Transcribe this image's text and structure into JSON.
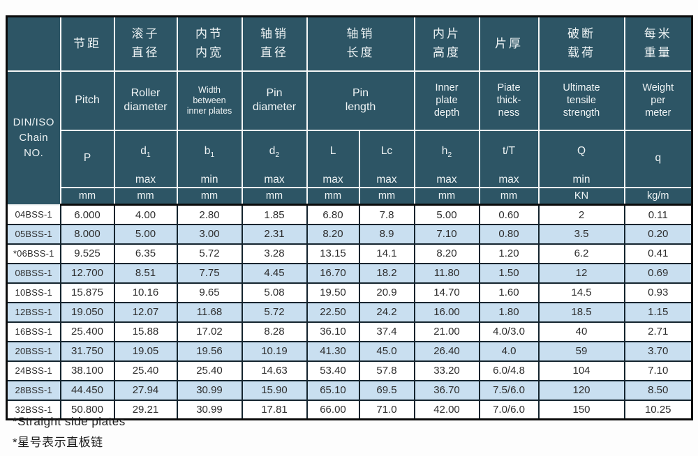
{
  "table": {
    "corner_label": "",
    "row_header": {
      "en": "DIN/ISO\nChain\nNO."
    },
    "columns": [
      {
        "cn": "节距",
        "en": "Pitch",
        "sym": {
          "base": "P",
          "sub": "",
          "qual": ""
        },
        "unit": "mm"
      },
      {
        "cn": "滚子\n直径",
        "en": "Roller\ndiameter",
        "sym": {
          "base": "d",
          "sub": "1",
          "qual": "max"
        },
        "unit": "mm"
      },
      {
        "cn": "内节\n内宽",
        "en": "Width\nbetween\ninner plates",
        "sym": {
          "base": "b",
          "sub": "1",
          "qual": "min"
        },
        "unit": "mm"
      },
      {
        "cn": "轴销\n直径",
        "en": "Pin\ndiameter",
        "sym": {
          "base": "d",
          "sub": "2",
          "qual": "max"
        },
        "unit": "mm"
      },
      {
        "cn": "轴销\n长度",
        "en": "Pin\nlength",
        "sub_columns": [
          {
            "sym": {
              "base": "L",
              "sub": "",
              "qual": "max"
            },
            "unit": "mm"
          },
          {
            "sym": {
              "base": "Lc",
              "sub": "",
              "qual": "max"
            },
            "unit": "mm"
          }
        ]
      },
      {
        "cn": "内片\n高度",
        "en": "Inner\nplate\ndepth",
        "sym": {
          "base": "h",
          "sub": "2",
          "qual": "max"
        },
        "unit": "mm"
      },
      {
        "cn": "片厚",
        "en": "Piate\nthick-\nness",
        "sym": {
          "base": "t/T",
          "sub": "",
          "qual": "max"
        },
        "unit": "mm"
      },
      {
        "cn": "破断\n载荷",
        "en": "Ultimate\ntensile\nstrength",
        "sym": {
          "base": "Q",
          "sub": "",
          "qual": "min"
        },
        "unit": "KN"
      },
      {
        "cn": "每米\n重量",
        "en": "Weight\nper\nmeter",
        "sym": {
          "base": "q",
          "sub": "",
          "qual": ""
        },
        "unit": "kg/m"
      }
    ],
    "rows": [
      {
        "label": "04BSS-1",
        "values": [
          "6.000",
          "4.00",
          "2.80",
          "1.85",
          "6.80",
          "7.8",
          "5.00",
          "0.60",
          "2",
          "0.11"
        ]
      },
      {
        "label": "05BSS-1",
        "values": [
          "8.000",
          "5.00",
          "3.00",
          "2.31",
          "8.20",
          "8.9",
          "7.10",
          "0.80",
          "3.5",
          "0.20"
        ]
      },
      {
        "label": "*06BSS-1",
        "values": [
          "9.525",
          "6.35",
          "5.72",
          "3.28",
          "13.15",
          "14.1",
          "8.20",
          "1.20",
          "6.2",
          "0.41"
        ]
      },
      {
        "label": "08BSS-1",
        "values": [
          "12.700",
          "8.51",
          "7.75",
          "4.45",
          "16.70",
          "18.2",
          "11.80",
          "1.50",
          "12",
          "0.69"
        ]
      },
      {
        "label": "10BSS-1",
        "values": [
          "15.875",
          "10.16",
          "9.65",
          "5.08",
          "19.50",
          "20.9",
          "14.70",
          "1.60",
          "14.5",
          "0.93"
        ]
      },
      {
        "label": "12BSS-1",
        "values": [
          "19.050",
          "12.07",
          "11.68",
          "5.72",
          "22.50",
          "24.2",
          "16.00",
          "1.80",
          "18.5",
          "1.15"
        ]
      },
      {
        "label": "16BSS-1",
        "values": [
          "25.400",
          "15.88",
          "17.02",
          "8.28",
          "36.10",
          "37.4",
          "21.00",
          "4.0/3.0",
          "40",
          "2.71"
        ]
      },
      {
        "label": "20BSS-1",
        "values": [
          "31.750",
          "19.05",
          "19.56",
          "10.19",
          "41.30",
          "45.0",
          "26.40",
          "4.0",
          "59",
          "3.70"
        ]
      },
      {
        "label": "24BSS-1",
        "values": [
          "38.100",
          "25.40",
          "25.40",
          "14.63",
          "53.40",
          "57.8",
          "33.20",
          "6.0/4.8",
          "104",
          "7.10"
        ]
      },
      {
        "label": "28BSS-1",
        "values": [
          "44.450",
          "27.94",
          "30.99",
          "15.90",
          "65.10",
          "69.5",
          "36.70",
          "7.5/6.0",
          "120",
          "8.50"
        ]
      },
      {
        "label": "32BSS-1",
        "values": [
          "50.800",
          "29.21",
          "30.99",
          "17.81",
          "66.00",
          "71.0",
          "42.00",
          "7.0/6.0",
          "150",
          "10.25"
        ]
      }
    ]
  },
  "footnotes": {
    "en": "*Straight side plates",
    "cn": "*星号表示直板链"
  },
  "colors": {
    "header_bg": "#2d5565",
    "header_grid": "#f4f6f6",
    "header_text": "#eff4f5",
    "body_grid": "#14242e",
    "row_alt_bg": "#c9dff0",
    "outer_border": "#0b0b0b",
    "body_text": "#2d2d2d"
  }
}
